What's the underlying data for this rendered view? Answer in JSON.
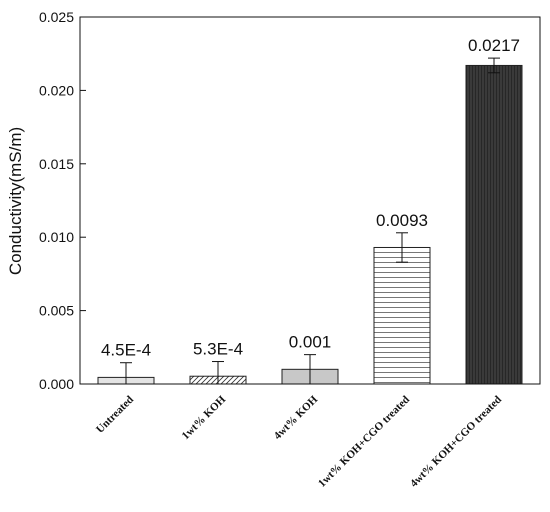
{
  "chart_data": {
    "type": "bar",
    "title": "",
    "xlabel": "",
    "ylabel": "Conductivity(mS/m)",
    "ylim": [
      0,
      0.025
    ],
    "y_ticks": [
      0.0,
      0.005,
      0.01,
      0.015,
      0.02,
      0.025
    ],
    "y_tick_labels": [
      "0.000",
      "0.005",
      "0.010",
      "0.015",
      "0.020",
      "0.025"
    ],
    "categories": [
      "Untreated",
      "1wt% KOH",
      "4wt% KOH",
      "1wt% KOH+CGO treated",
      "4wt% KOH+CGO treated"
    ],
    "values": [
      0.00045,
      0.00053,
      0.001,
      0.0093,
      0.0217
    ],
    "errors": [
      0.001,
      0.001,
      0.001,
      0.001,
      0.0005
    ],
    "data_labels": [
      "4.5E-4",
      "5.3E-4",
      "0.001",
      "0.0093",
      "0.0217"
    ],
    "bar_fills": [
      "light-gray",
      "diagonal-hatch",
      "gray",
      "horizontal-lines",
      "dark-gray-vertical"
    ],
    "colors": {
      "bar_edge": "#222222",
      "light_gray": "#e4e4e4",
      "gray": "#c8c8c8",
      "dark": "#3a3a3a"
    },
    "grid": false,
    "legend": "none"
  }
}
